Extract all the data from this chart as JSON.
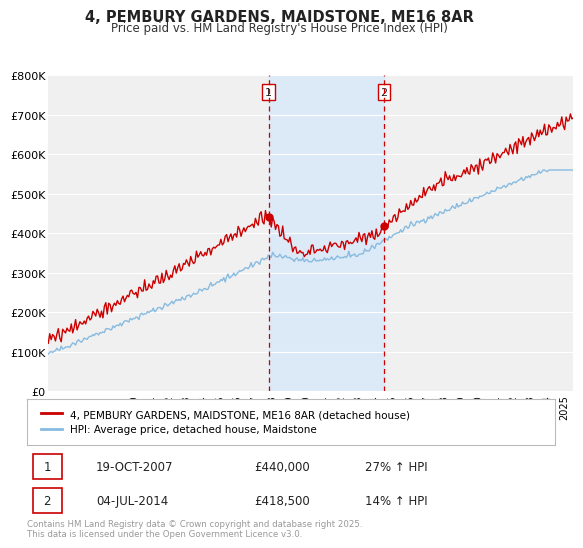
{
  "title": "4, PEMBURY GARDENS, MAIDSTONE, ME16 8AR",
  "subtitle": "Price paid vs. HM Land Registry's House Price Index (HPI)",
  "ylabel_ticks": [
    "£0",
    "£100K",
    "£200K",
    "£300K",
    "£400K",
    "£500K",
    "£600K",
    "£700K",
    "£800K"
  ],
  "ytick_values": [
    0,
    100000,
    200000,
    300000,
    400000,
    500000,
    600000,
    700000,
    800000
  ],
  "ylim": [
    0,
    800000
  ],
  "xlim_start": 1995.0,
  "xlim_end": 2025.5,
  "transaction1_date": 2007.8,
  "transaction1_price": 440000,
  "transaction2_date": 2014.5,
  "transaction2_price": 418500,
  "shaded_color": "#dce9f7",
  "vline_color": "#cc0000",
  "red_line_color": "#cc0000",
  "blue_line_color": "#88bbe0",
  "legend_label_red": "4, PEMBURY GARDENS, MAIDSTONE, ME16 8AR (detached house)",
  "legend_label_blue": "HPI: Average price, detached house, Maidstone",
  "annotation1": [
    "1",
    "19-OCT-2007",
    "£440,000",
    "27% ↑ HPI"
  ],
  "annotation2": [
    "2",
    "04-JUL-2014",
    "£418,500",
    "14% ↑ HPI"
  ],
  "footer": "Contains HM Land Registry data © Crown copyright and database right 2025.\nThis data is licensed under the Open Government Licence v3.0.",
  "background_color": "#ffffff",
  "plot_bg_color": "#f0f0f0",
  "grid_color": "#ffffff",
  "xtick_years": [
    1995,
    1996,
    1997,
    1998,
    1999,
    2000,
    2001,
    2002,
    2003,
    2004,
    2005,
    2006,
    2007,
    2008,
    2009,
    2010,
    2011,
    2012,
    2013,
    2014,
    2015,
    2016,
    2017,
    2018,
    2019,
    2020,
    2021,
    2022,
    2023,
    2024,
    2025
  ]
}
